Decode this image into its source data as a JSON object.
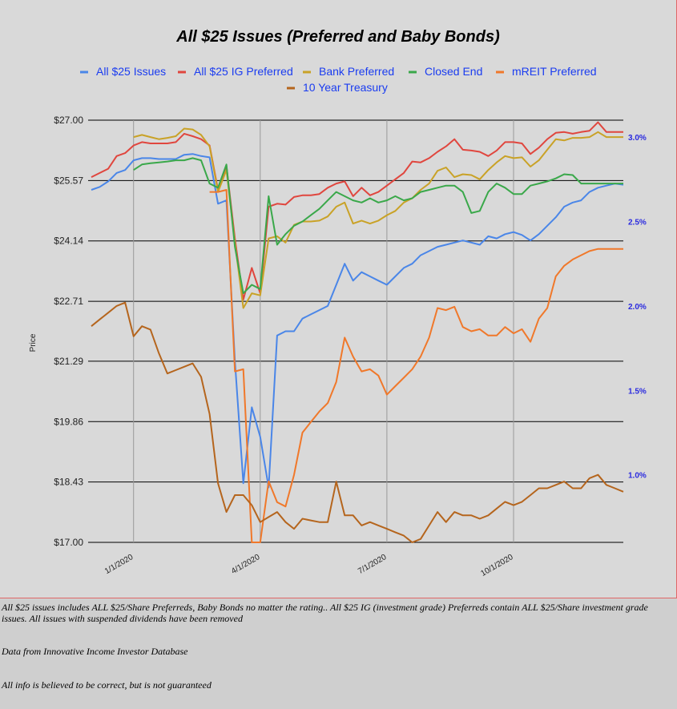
{
  "chart_data": {
    "type": "line",
    "title": "All $25 Issues (Preferred and Baby Bonds)",
    "ylabel": "Price",
    "ylim": [
      17.0,
      27.0
    ],
    "y2lim": [
      0.6,
      3.1
    ],
    "y_ticks": [
      "$27.00",
      "$25.57",
      "$24.14",
      "$22.71",
      "$21.29",
      "$19.86",
      "$18.43",
      "$17.00"
    ],
    "y2_ticks": [
      "3.0%",
      "2.5%",
      "2.0%",
      "1.5%",
      "1.0%"
    ],
    "x_ticks": [
      "1/1/2020",
      "4/1/2020",
      "7/1/2020",
      "10/1/2020"
    ],
    "grid": true,
    "legend_position": "top",
    "x": [
      0,
      1,
      2,
      3,
      4,
      5,
      6,
      7,
      8,
      9,
      10,
      11,
      12,
      13,
      14,
      15,
      16,
      17,
      18,
      19,
      20,
      21,
      22,
      23,
      24,
      25,
      26,
      27,
      28,
      29,
      30,
      31,
      32,
      33,
      34,
      35,
      36,
      37,
      38,
      39,
      40,
      41,
      42,
      43,
      44,
      45,
      46,
      47,
      48,
      49,
      50,
      51,
      52,
      53,
      54,
      55,
      56,
      57,
      58,
      59,
      60,
      61,
      62,
      63
    ],
    "series": [
      {
        "name": "All $25 Issues",
        "color": "#4a86e8",
        "axis": "left",
        "values": [
          25.35,
          25.42,
          25.55,
          25.75,
          25.82,
          26.05,
          26.1,
          26.1,
          26.08,
          26.08,
          26.08,
          26.18,
          26.2,
          26.15,
          26.12,
          25.02,
          25.1,
          21.3,
          18.4,
          20.2,
          19.5,
          18.3,
          21.9,
          22.0,
          22.0,
          22.3,
          22.4,
          22.5,
          22.6,
          23.1,
          23.6,
          23.2,
          23.4,
          23.3,
          23.2,
          23.1,
          23.3,
          23.5,
          23.6,
          23.8,
          23.9,
          24.0,
          24.05,
          24.1,
          24.15,
          24.1,
          24.05,
          24.25,
          24.2,
          24.3,
          24.35,
          24.28,
          24.15,
          24.3,
          24.5,
          24.7,
          24.95,
          25.05,
          25.1,
          25.3,
          25.4,
          25.45,
          25.5,
          25.47
        ]
      },
      {
        "name": "All $25 IG Preferred",
        "color": "#e0463e",
        "axis": "left",
        "values": [
          25.65,
          25.75,
          25.85,
          26.15,
          26.22,
          26.4,
          26.48,
          26.45,
          26.45,
          26.45,
          26.48,
          26.68,
          26.62,
          26.55,
          26.4,
          25.35,
          25.92,
          24.2,
          22.75,
          23.5,
          22.9,
          24.95,
          25.02,
          25.0,
          25.18,
          25.22,
          25.22,
          25.25,
          25.4,
          25.5,
          25.55,
          25.2,
          25.4,
          25.22,
          25.3,
          25.45,
          25.6,
          25.75,
          26.02,
          26.0,
          26.1,
          26.25,
          26.38,
          26.55,
          26.3,
          26.28,
          26.25,
          26.15,
          26.28,
          26.48,
          26.48,
          26.45,
          26.2,
          26.35,
          26.55,
          26.7,
          26.72,
          26.68,
          26.72,
          26.75,
          26.95,
          26.72,
          26.72,
          26.72
        ]
      },
      {
        "name": "Bank Preferred",
        "color": "#c9a227",
        "axis": "left",
        "values": [
          null,
          null,
          null,
          null,
          null,
          26.6,
          26.65,
          26.6,
          26.55,
          26.58,
          26.62,
          26.8,
          26.78,
          26.65,
          26.38,
          25.3,
          25.82,
          24.1,
          22.55,
          22.9,
          22.85,
          24.2,
          24.25,
          24.1,
          24.52,
          24.6,
          24.6,
          24.62,
          24.72,
          24.95,
          25.05,
          24.55,
          24.62,
          24.55,
          24.62,
          24.75,
          24.85,
          25.05,
          25.15,
          25.35,
          25.5,
          25.8,
          25.88,
          25.65,
          25.72,
          25.7,
          25.6,
          25.82,
          26.0,
          26.15,
          26.1,
          26.12,
          25.9,
          26.05,
          26.3,
          26.55,
          26.52,
          26.58,
          26.58,
          26.6,
          26.72,
          26.6,
          26.6,
          26.6
        ]
      },
      {
        "name": "Closed End",
        "color": "#3aa84a",
        "axis": "left",
        "values": [
          null,
          null,
          null,
          null,
          null,
          25.82,
          25.95,
          25.98,
          26.0,
          26.02,
          26.05,
          26.05,
          26.1,
          26.05,
          25.5,
          25.4,
          25.95,
          24.0,
          22.9,
          23.1,
          23.0,
          25.2,
          24.05,
          24.3,
          24.5,
          24.6,
          24.75,
          24.9,
          25.1,
          25.3,
          25.2,
          25.1,
          25.05,
          25.15,
          25.05,
          25.1,
          25.2,
          25.1,
          25.15,
          25.3,
          25.35,
          25.4,
          25.45,
          25.45,
          25.3,
          24.8,
          24.85,
          25.3,
          25.5,
          25.4,
          25.25,
          25.25,
          25.45,
          25.5,
          25.55,
          25.62,
          25.72,
          25.7,
          25.5,
          25.5,
          25.5,
          25.5,
          25.5,
          25.5
        ]
      },
      {
        "name": "mREIT Preferred",
        "color": "#f0782a",
        "axis": "left",
        "values": [
          null,
          null,
          null,
          null,
          null,
          null,
          null,
          null,
          null,
          null,
          null,
          null,
          null,
          null,
          25.3,
          25.3,
          25.35,
          21.05,
          21.1,
          17.0,
          17.0,
          18.45,
          17.95,
          17.85,
          18.6,
          19.6,
          19.85,
          20.1,
          20.3,
          20.8,
          21.85,
          21.4,
          21.05,
          21.1,
          20.95,
          20.5,
          20.7,
          20.9,
          21.1,
          21.4,
          21.85,
          22.55,
          22.5,
          22.58,
          22.1,
          22.0,
          22.05,
          21.9,
          21.9,
          22.1,
          21.95,
          22.05,
          21.75,
          22.3,
          22.55,
          23.3,
          23.55,
          23.7,
          23.8,
          23.9,
          23.95,
          23.95,
          23.95,
          23.95
        ]
      },
      {
        "name": "10 Year Treasury",
        "color": "#b5651d",
        "axis": "right",
        "values": [
          1.88,
          1.92,
          1.96,
          2.0,
          2.02,
          1.82,
          1.88,
          1.86,
          1.72,
          1.6,
          1.62,
          1.64,
          1.66,
          1.58,
          1.36,
          0.95,
          0.78,
          0.88,
          0.88,
          0.82,
          0.72,
          0.75,
          0.78,
          0.72,
          0.68,
          0.74,
          0.73,
          0.72,
          0.72,
          0.96,
          0.76,
          0.76,
          0.7,
          0.72,
          0.7,
          0.68,
          0.66,
          0.64,
          0.6,
          0.62,
          0.7,
          0.78,
          0.72,
          0.78,
          0.76,
          0.76,
          0.74,
          0.76,
          0.8,
          0.84,
          0.82,
          0.84,
          0.88,
          0.92,
          0.92,
          0.94,
          0.96,
          0.92,
          0.92,
          0.98,
          1.0,
          0.94,
          0.92,
          0.9
        ]
      }
    ]
  },
  "notes": {
    "line1": "All $25 issues includes ALL $25/Share Preferreds, Baby Bonds no matter the rating..  All $25 IG (investment grade) Preferreds contain ALL $25/Share investment grade issues.  All issues with suspended dividends have been removed",
    "line2": "Data from Innovative Income Investor Database",
    "line3": "All info is believed to be correct, but is not guaranteed"
  }
}
